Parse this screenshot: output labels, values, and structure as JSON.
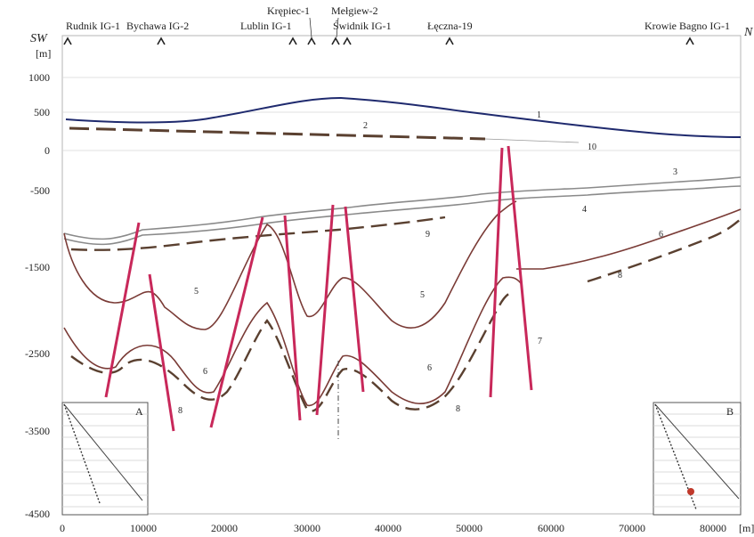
{
  "figure": {
    "direction_left": "SW",
    "direction_right": "N",
    "y_unit": "[m]",
    "x_unit": "[m]",
    "y_ticks": [
      "1000",
      "500",
      "0",
      "-500",
      "-1500",
      "-2500",
      "-3500",
      "-4500"
    ],
    "x_ticks": [
      "0",
      "10000",
      "20000",
      "30000",
      "40000",
      "50000",
      "60000",
      "70000",
      "80000"
    ],
    "wells": [
      {
        "name": "Rudnik IG-1"
      },
      {
        "name": "Bychawa IG-2"
      },
      {
        "name": "Lublin IG-1"
      },
      {
        "name": "Krępiec-1"
      },
      {
        "name": "Mełgiew-2"
      },
      {
        "name": "Świdnik IG-1"
      },
      {
        "name": "Łęczna-19"
      },
      {
        "name": "Krowie Bagno IG-1"
      }
    ],
    "line_numbers": [
      "1",
      "2",
      "10",
      "3",
      "4",
      "9",
      "6",
      "8",
      "5",
      "5",
      "7",
      "6",
      "8",
      "6",
      "8"
    ],
    "inset_a": "A",
    "inset_b": "B"
  },
  "colors": {
    "topography": "#1f2a6e",
    "dashed": "#5a4030",
    "horizon": "#8a8a8a",
    "brown": "#7a3b36",
    "fault": "#c8285a"
  }
}
